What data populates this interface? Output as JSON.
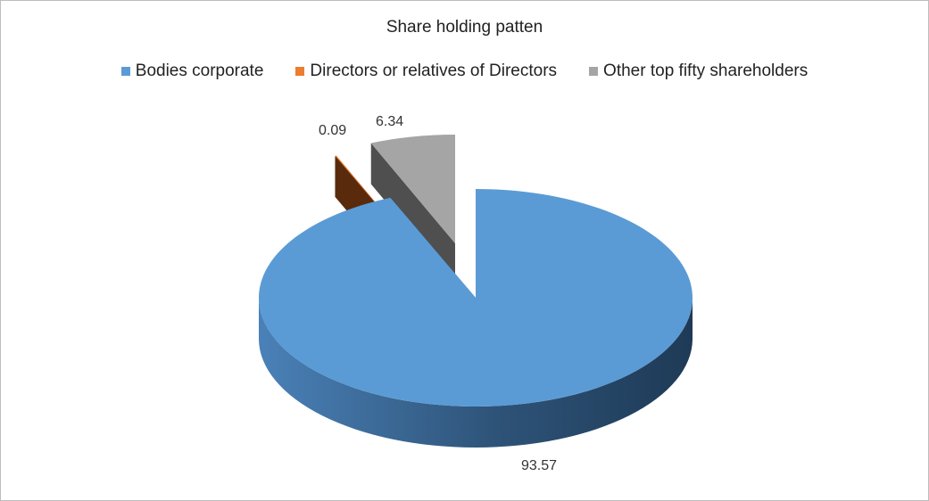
{
  "chart_data": {
    "type": "pie",
    "title": "Share holding patten",
    "legend_position": "top",
    "categories": [
      "Bodies corporate",
      "Directors or relatives of Directors",
      "Other top fifty shareholders"
    ],
    "values": [
      93.57,
      0.09,
      6.34
    ],
    "data_labels": [
      "93.57",
      "0.09",
      "6.34"
    ],
    "colors": [
      "#5b9bd5",
      "#ed7d31",
      "#a5a5a5"
    ],
    "three_d": true,
    "exploded": true
  }
}
